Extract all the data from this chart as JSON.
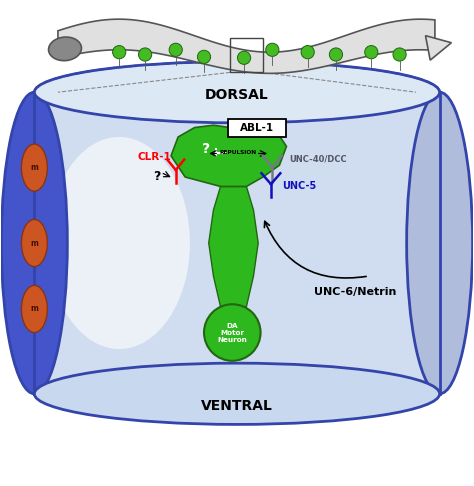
{
  "dorsal_label": "DORSAL",
  "ventral_label": "VENTRAL",
  "abl1_label": "ABL-1",
  "clr1_label": "CLR-1",
  "unc40_label": "UNC-40/DCC",
  "unc5_label": "UNC-5",
  "netrin_label": "UNC-6/Netrin",
  "repulsion_label": "REPULSION",
  "da_label": "DA\nMotor\nNeuron",
  "question_mark": "?",
  "muscle_color": "#cc5522",
  "neuron_green": "#2db81e",
  "dot_color": "#44bb22",
  "background_color": "#ffffff",
  "cyl_left_color": "#4455bb",
  "cyl_body_color": "#ccd8ee",
  "cyl_top_color": "#dde5f0",
  "cyl_edge_color": "#3344aa",
  "worm_body": "#e0e0e0",
  "worm_edge": "#555555",
  "worm_head": "#aaaaaa"
}
